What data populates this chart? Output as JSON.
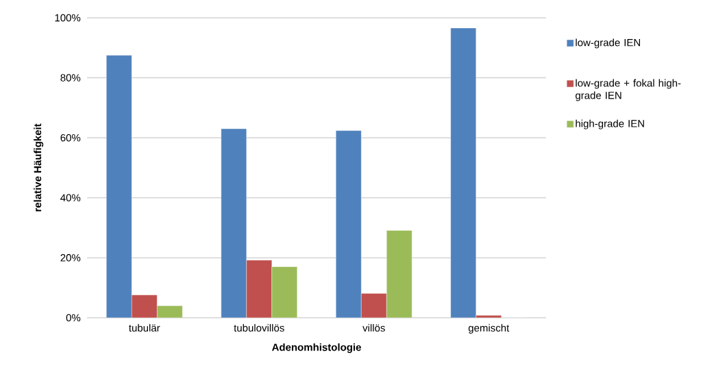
{
  "chart_data": {
    "type": "bar",
    "xlabel": "Adenomhistologie",
    "ylabel": "relative  Häufigkeit",
    "categories": [
      "tubulär",
      "tubulovillös",
      "villös",
      "gemischt"
    ],
    "series": [
      {
        "name": "low-grade IEN",
        "color": "#4f81bd",
        "values": [
          87.5,
          63.0,
          62.4,
          96.6
        ]
      },
      {
        "name": "low-grade + fokal high-grade IEN",
        "color": "#c0504d",
        "values": [
          7.6,
          19.2,
          8.1,
          0.8
        ]
      },
      {
        "name": "high-grade IEN",
        "color": "#9bbb59",
        "values": [
          4.0,
          17.0,
          29.1,
          0
        ]
      }
    ],
    "ylim": [
      0,
      100
    ],
    "yticks": [
      {
        "value": 0,
        "label": "0%"
      },
      {
        "value": 20,
        "label": "20%"
      },
      {
        "value": 40,
        "label": "40%"
      },
      {
        "value": 60,
        "label": "60%"
      },
      {
        "value": 80,
        "label": "80%"
      },
      {
        "value": 100,
        "label": "100%"
      }
    ],
    "grid": "y",
    "legend": "right"
  }
}
